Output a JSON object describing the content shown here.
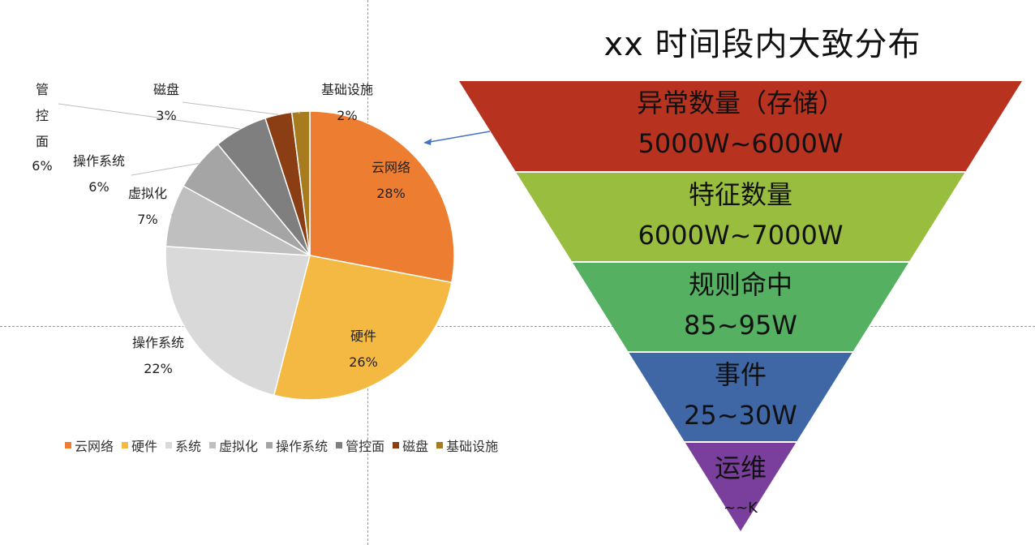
{
  "title": "xx 时间段内大致分布",
  "chart_data": [
    {
      "type": "pie",
      "slices": [
        {
          "name": "云网络",
          "label": "云网络",
          "value": 28,
          "pct": "28%",
          "color": "#ED7D31"
        },
        {
          "name": "硬件",
          "label": "硬件",
          "value": 26,
          "pct": "26%",
          "color": "#F4B942"
        },
        {
          "name": "系统",
          "label": "操作系统",
          "value": 22,
          "pct": "22%",
          "color": "#D9D9D9"
        },
        {
          "name": "虚拟化",
          "label": "虚拟化",
          "value": 7,
          "pct": "7%",
          "color": "#BFBFBF"
        },
        {
          "name": "操作系统",
          "label": "操作系统",
          "value": 6,
          "pct": "6%",
          "color": "#A5A5A5"
        },
        {
          "name": "管控面",
          "label": "管\n控\n面",
          "value": 6,
          "pct": "6%",
          "color": "#7F7F7F"
        },
        {
          "name": "磁盘",
          "label": "磁盘",
          "value": 3,
          "pct": "3%",
          "color": "#8B3D14"
        },
        {
          "name": "基础设施",
          "label": "基础设施",
          "value": 2,
          "pct": "2%",
          "color": "#A67C1F"
        }
      ],
      "legend_placement": "bottom"
    },
    {
      "type": "funnel",
      "stages": [
        {
          "label": "异常数量（存储）",
          "value": "5000W~6000W",
          "color": "#B83220"
        },
        {
          "label": "特征数量",
          "value": "6000W~7000W",
          "color": "#99BD3F"
        },
        {
          "label": "规则命中",
          "value": "85~95W",
          "color": "#55B061"
        },
        {
          "label": "事件",
          "value": "25~30W",
          "color": "#3F67A6"
        },
        {
          "label": "运维",
          "value": "~~K",
          "color": "#7A3F9C"
        }
      ]
    }
  ]
}
